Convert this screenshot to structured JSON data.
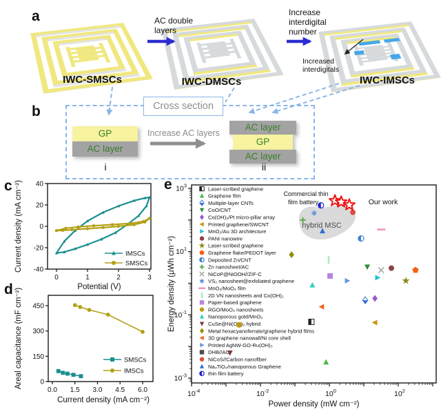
{
  "figure": {
    "letters": {
      "a": "a",
      "b": "b",
      "c": "c",
      "d": "d",
      "e": "e"
    },
    "a": {
      "labels": [
        "IWC-SMSCs",
        "IWC-DMSCs",
        "IWC-IMSCs"
      ],
      "arrow1_label": "AC double layers",
      "arrow2_label": "Increase interdigital number",
      "annotation": "Increased interdigitals"
    },
    "b": {
      "title": "Cross section",
      "arrow_label": "Increase AC layers",
      "left_stack": [
        "GP",
        "AC layer"
      ],
      "right_stack": [
        "AC layer",
        "GP",
        "AC layer"
      ],
      "left_tag": "i",
      "right_tag": "ii"
    }
  },
  "colors": {
    "device_yellow": "#f0e87f",
    "device_gray": "#d6dadd",
    "device_blue": "#45a7e8",
    "arrow_blue": "#2d2dd0",
    "dashed_blue": "#8ab6e8",
    "gp_yellow": "#f7f3a0",
    "ac_gray": "#a3a3a3",
    "stack_text_green": "#3a7d2c",
    "imscs_teal": "#1a8f8f",
    "smscs_olive": "#b3a116",
    "our_work_red": "#ee1111"
  },
  "chart_data": [
    {
      "id": "c",
      "type": "line",
      "xlabel": "Potential (V)",
      "ylabel": "Current density (mA cm⁻²)",
      "xticks": [
        "0",
        "1",
        "2",
        "3"
      ],
      "xtick_values": [
        0,
        1,
        2,
        3
      ],
      "yticks": [
        "-40",
        "-20",
        "0",
        "20",
        "40"
      ],
      "ytick_values": [
        -40,
        -20,
        0,
        20,
        40
      ],
      "xlim": [
        -0.3,
        3.1
      ],
      "ylim": [
        -48,
        48
      ],
      "series": [
        {
          "name": "IMSCs",
          "color": "#1a8f8f",
          "marker": "triangle-up",
          "closed": true,
          "points": [
            [
              0,
              -25
            ],
            [
              0.25,
              -14
            ],
            [
              0.6,
              -4
            ],
            [
              1.0,
              5
            ],
            [
              1.5,
              13
            ],
            [
              2.0,
              19
            ],
            [
              2.5,
              24
            ],
            [
              2.85,
              26.5
            ],
            [
              3.0,
              27
            ],
            [
              2.9,
              19
            ],
            [
              2.65,
              10
            ],
            [
              2.3,
              2
            ],
            [
              1.9,
              -6
            ],
            [
              1.45,
              -12
            ],
            [
              1.0,
              -17
            ],
            [
              0.6,
              -21
            ],
            [
              0.25,
              -24
            ]
          ]
        },
        {
          "name": "SMSCs",
          "color": "#b3a116",
          "marker": "circle",
          "closed": true,
          "points": [
            [
              0,
              -4
            ],
            [
              0.3,
              -1.8
            ],
            [
              0.7,
              -0.5
            ],
            [
              1.2,
              0.5
            ],
            [
              1.8,
              1.6
            ],
            [
              2.4,
              2.8
            ],
            [
              2.8,
              4.5
            ],
            [
              3.0,
              7.5
            ],
            [
              2.85,
              4
            ],
            [
              2.5,
              1.5
            ],
            [
              2.0,
              0
            ],
            [
              1.5,
              -1.2
            ],
            [
              1.0,
              -2.2
            ],
            [
              0.5,
              -3.2
            ],
            [
              0.2,
              -3.8
            ]
          ]
        }
      ]
    },
    {
      "id": "d",
      "type": "line",
      "xlabel": "Current density (mA cm⁻²)",
      "ylabel": "Areal capacitance (mF cm⁻²)",
      "xticks": [
        "0.0",
        "1.5",
        "3.0",
        "4.5",
        "6.0"
      ],
      "xtick_values": [
        0,
        1.5,
        3,
        4.5,
        6
      ],
      "yticks": [
        "0",
        "150",
        "300",
        "450"
      ],
      "ytick_values": [
        0,
        150,
        300,
        450
      ],
      "xlim": [
        -0.3,
        6.9
      ],
      "ylim": [
        0,
        512
      ],
      "series": [
        {
          "name": "SMSCs",
          "color": "#1a8f8f",
          "marker": "square",
          "points": [
            [
              0.4,
              62
            ],
            [
              0.7,
              52
            ],
            [
              1.0,
              47
            ],
            [
              1.4,
              40
            ],
            [
              1.9,
              32
            ]
          ]
        },
        {
          "name": "IMSCs",
          "color": "#b3a116",
          "marker": "circle",
          "points": [
            [
              1.5,
              453
            ],
            [
              1.85,
              442
            ],
            [
              2.45,
              425
            ],
            [
              3.7,
              397
            ],
            [
              6.0,
              295
            ]
          ]
        }
      ]
    },
    {
      "id": "e",
      "type": "scatter",
      "xlabel": "Power density (mW cm⁻²)",
      "ylabel": "Energy density (μWh cm⁻²)",
      "xtick_exponents": [
        -4,
        -3,
        -2,
        -1,
        0,
        1,
        2,
        3
      ],
      "xtick_labeled": [
        -4,
        -2,
        0,
        2
      ],
      "ytick_exponents": [
        -3,
        -2,
        -1,
        0,
        1,
        2,
        3
      ],
      "ytick_labeled": [
        3,
        1,
        -1,
        -3
      ],
      "xlim_exp": [
        -4,
        3.2
      ],
      "ylim_exp": [
        -3.15,
        3.1
      ],
      "our_work": {
        "label": "Our work",
        "color": "#ee1111",
        "marker": "star-open",
        "points": [
          [
            1.45,
            407
          ],
          [
            2.2,
            370
          ],
          [
            3.8,
            300
          ]
        ]
      },
      "hybrid_region_label": "hybrid MSC",
      "battery_note_lines": [
        "Commercial thin",
        "film battery"
      ],
      "series": [
        {
          "label": "Laser-scribed graphene",
          "marker": "square-half",
          "color": "#222222",
          "point": [
            0.3,
            0.06
          ]
        },
        {
          "label": "Graphene film",
          "marker": "triangle-up",
          "color": "#4cb944",
          "point": [
            0.8,
            0.0032
          ]
        },
        {
          "label": "Multiple-layer CNTs",
          "marker": "diamond-half",
          "color": "#2f6fd6",
          "point": [
            11,
            0.29
          ]
        },
        {
          "label": "CoO/CNT",
          "marker": "triangle-down",
          "color": "#2e8b3a",
          "point": [
            12.6,
            3.3
          ]
        },
        {
          "label": "Co(OH)₂/Pt micro-pillar array",
          "marker": "diamond",
          "color": "#9b59d6",
          "point": [
            21,
            0.33
          ]
        },
        {
          "label": "Printed graphene/SWCNT",
          "marker": "triangle-left",
          "color": "#c8960c",
          "point": [
            21,
            0.057
          ]
        },
        {
          "label": "MnO₂/Au 3D architecture",
          "marker": "triangle-right",
          "color": "#1fc3cf",
          "point": [
            25,
            1.5
          ]
        },
        {
          "label": "PANI nanowire",
          "marker": "circle",
          "color": "#8c4343",
          "point": [
            63,
            3.0
          ]
        },
        {
          "label": "Laser-scribed graphene",
          "marker": "star",
          "color": "#8f8a12",
          "point": [
            166,
            1.2
          ]
        },
        {
          "label": "Graphene flake/PEDOT layer",
          "marker": "pentagon",
          "color": "#f26111",
          "point": [
            316,
            2.6
          ]
        },
        {
          "label": "Deposited Zn/CNT",
          "marker": "circle-half",
          "color": "#3f7fd4",
          "point": [
            8.3,
            26
          ]
        },
        {
          "label": "Zn nanosheet/AC",
          "marker": "plus",
          "color": "#53a843",
          "point": [
            0.17,
            100
          ]
        },
        {
          "label": "NiCoP@NiOOH//ZIF-C",
          "marker": "x",
          "color": "#9e9e9e",
          "point": [
            32,
            2.6
          ]
        },
        {
          "label": "VS₂ nanosheet@exfoliated graphene",
          "marker": "asterisk",
          "color": "#5c8fd6",
          "point": [
            0.36,
            165
          ]
        },
        {
          "label": "MnO₂/MoO₂ film",
          "marker": "dash",
          "color": "#f093c0",
          "point": [
            32,
            50
          ]
        },
        {
          "label": "2D VN nanosheets and Co(OH)₂",
          "marker": "vbar",
          "color": "#b2e5c5",
          "point": [
            0.95,
            5.5
          ]
        },
        {
          "label": "Paper-based graphene",
          "marker": "square",
          "color": "#b685e0",
          "point": [
            1.05,
            1.7
          ]
        },
        {
          "label": "RGO/MoO₃ nanosheets",
          "marker": "circle",
          "color": "#c09a10",
          "point": [
            0.0024,
            0.048
          ]
        },
        {
          "label": "Nanoporous gold/MnO₂",
          "marker": "triangle-up",
          "color": "#35cdc2",
          "point": [
            0.32,
            0.87
          ]
        },
        {
          "label": "CuSe@Ni(OH)₂ hybrid",
          "marker": "triangle-down",
          "color": "#7a3b3b",
          "point": [
            0.0013,
            0.0063
          ]
        },
        {
          "label": "Metal hexacyanoferrate/graphene hybrid films",
          "marker": "diamond",
          "color": "#988c0a",
          "point": [
            0.08,
            8
          ]
        },
        {
          "label": "3D graphene nanowall/Ni core shell",
          "marker": "triangle-left",
          "color": "#f3641e",
          "point": [
            0.6,
            0.18
          ]
        },
        {
          "label": "Printed AgNW-GO-Ru(OH)₃",
          "marker": "triangle-right",
          "color": "#6699d8",
          "point": [
            3.3,
            1.2
          ]
        },
        {
          "label": "DHB//AC",
          "marker": "square",
          "color": "#4d4d4d",
          "point": null
        },
        {
          "label": "NiCoS//Carbon nanofiber",
          "marker": "circle",
          "color": "#d94f43",
          "point": [
            4.8,
            175
          ]
        },
        {
          "label": "Na₄TiO₄/nanoporous Graphene",
          "marker": "triangle-up",
          "color": "#2f6fd6",
          "point": [
            0.63,
            45
          ]
        },
        {
          "label": "thin film battery",
          "marker": "circle-half",
          "color": "#2222cc",
          "point": [
            0.57,
            290
          ]
        }
      ]
    }
  ]
}
